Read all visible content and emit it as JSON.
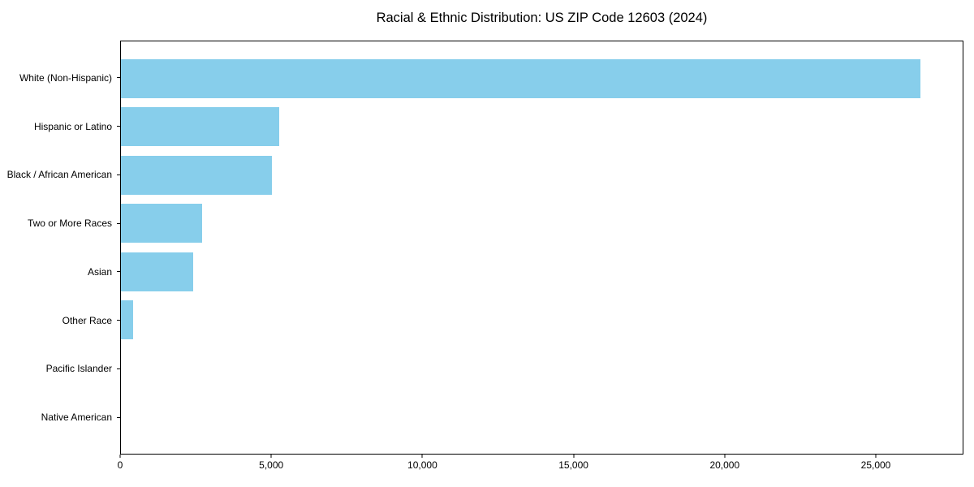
{
  "chart_data": {
    "type": "bar",
    "orientation": "horizontal",
    "title": "Racial & Ethnic Distribution: US ZIP Code 12603 (2024)",
    "categories": [
      "White (Non-Hispanic)",
      "Hispanic or Latino",
      "Black / African American",
      "Two or More Races",
      "Asian",
      "Other Race",
      "Pacific Islander",
      "Native American"
    ],
    "values": [
      26500,
      5250,
      5000,
      2700,
      2400,
      400,
      0,
      0
    ],
    "xlabel": "",
    "ylabel": "",
    "xlim": [
      0,
      27900
    ],
    "x_ticks": [
      {
        "value": 0,
        "label": "0"
      },
      {
        "value": 5000,
        "label": "5,000"
      },
      {
        "value": 10000,
        "label": "10,000"
      },
      {
        "value": 15000,
        "label": "15,000"
      },
      {
        "value": 20000,
        "label": "20,000"
      },
      {
        "value": 25000,
        "label": "25,000"
      }
    ],
    "bar_color": "#87CEEB",
    "axis_color": "#000000",
    "background_color": "#ffffff",
    "grid": false,
    "legend": null
  }
}
